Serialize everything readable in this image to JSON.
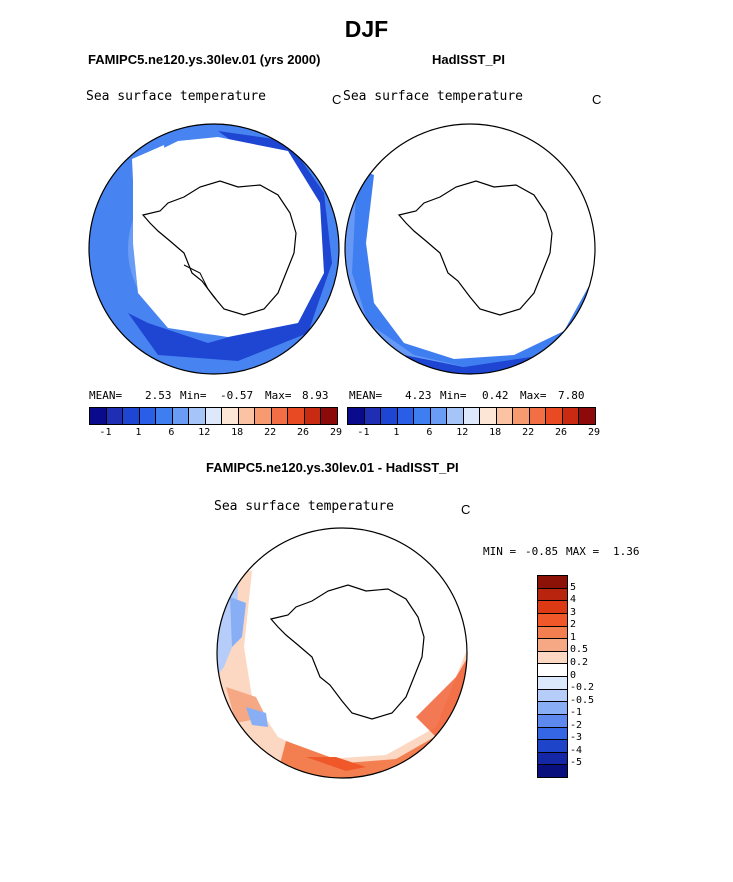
{
  "title": "DJF",
  "panels": {
    "left": {
      "header": "FAMIPC5.ne120.ys.30lev.01 (yrs 2000)",
      "variable": "Sea surface temperature",
      "units": "C",
      "mean_label": "MEAN=",
      "mean": "2.53",
      "min_label": "Min=",
      "min": "-0.57",
      "max_label": "Max=",
      "max": "8.93"
    },
    "right": {
      "header": "HadISST_PI",
      "variable": "Sea surface temperature",
      "units": "C",
      "mean_label": "MEAN=",
      "mean": "4.23",
      "min_label": "Min=",
      "min": "0.42",
      "max_label": "Max=",
      "max": "7.80"
    },
    "diff": {
      "header": "FAMIPC5.ne120.ys.30lev.01 - HadISST_PI",
      "variable": "Sea surface temperature",
      "units": "C",
      "min_label": "MIN =",
      "min": "-0.85",
      "max_label": "MAX =",
      "max": "1.36"
    }
  },
  "colorbar_main": {
    "colors": [
      "#0a0a8c",
      "#1f2fb4",
      "#1e46d2",
      "#2a5ee6",
      "#3f7ef0",
      "#6a9cf5",
      "#a5c4f7",
      "#dde9fb",
      "#fde6d6",
      "#fbc3a3",
      "#f79a70",
      "#f26e45",
      "#e84a24",
      "#c82a12",
      "#8c0a0a"
    ],
    "tick_labels": [
      "-1",
      "1",
      "6",
      "12",
      "18",
      "22",
      "26",
      "29"
    ]
  },
  "colorbar_diff": {
    "colors": [
      "#8c1208",
      "#b8240e",
      "#dc3a14",
      "#f0582a",
      "#f37f50",
      "#f5a883",
      "#fcd8c2",
      "#ffffff",
      "#dce8fb",
      "#b5cdf8",
      "#88aef5",
      "#5d89ee",
      "#3566e4",
      "#1e44c9",
      "#1427a6",
      "#0a0f7e"
    ],
    "tick_labels": [
      "5",
      "4",
      "3",
      "2",
      "1",
      "0.5",
      "0.2",
      "0",
      "-0.2",
      "-0.5",
      "-1",
      "-2",
      "-3",
      "-4",
      "-5"
    ]
  },
  "chart_data": [
    {
      "type": "heatmap",
      "title": "FAMIPC5.ne120.ys.30lev.01 (yrs 2000)",
      "variable": "Sea surface temperature",
      "units": "C",
      "projection": "south polar stereographic",
      "mean": 2.53,
      "min": -0.57,
      "max": 8.93,
      "levels": [
        -1,
        1,
        6,
        12,
        18,
        22,
        26,
        29
      ]
    },
    {
      "type": "heatmap",
      "title": "HadISST_PI",
      "variable": "Sea surface temperature",
      "units": "C",
      "projection": "south polar stereographic",
      "mean": 4.23,
      "min": 0.42,
      "max": 7.8,
      "levels": [
        -1,
        1,
        6,
        12,
        18,
        22,
        26,
        29
      ]
    },
    {
      "type": "heatmap",
      "title": "FAMIPC5.ne120.ys.30lev.01 - HadISST_PI",
      "variable": "Sea surface temperature",
      "units": "C",
      "projection": "south polar stereographic",
      "min": -0.85,
      "max": 1.36,
      "levels": [
        -5,
        -4,
        -3,
        -2,
        -1,
        -0.5,
        -0.2,
        0,
        0.2,
        0.5,
        1,
        2,
        3,
        4,
        5
      ]
    }
  ]
}
